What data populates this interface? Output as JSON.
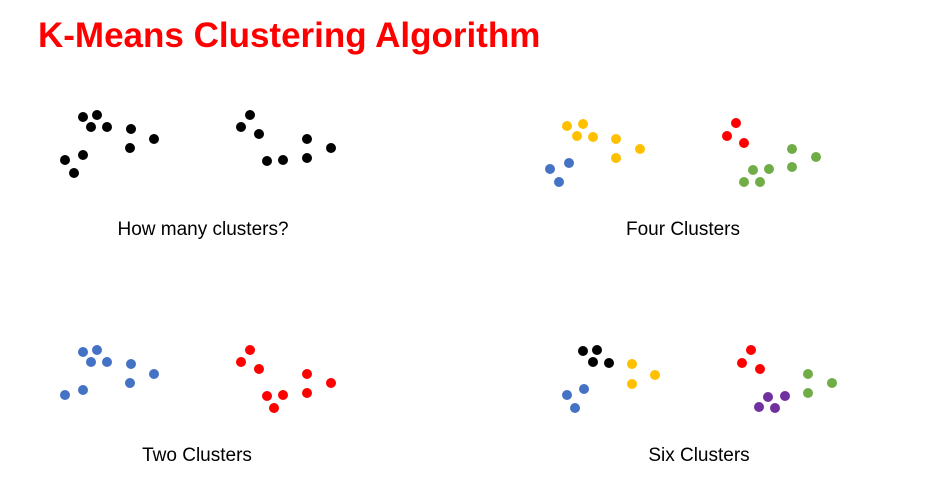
{
  "title": "K-Means Clustering Algorithm",
  "colors": {
    "title": "#ff0000",
    "black": "#000000",
    "blue": "#4472c4",
    "red": "#ff0000",
    "yellow": "#ffc000",
    "green": "#70ad47",
    "purple": "#7030a0"
  },
  "panels": [
    {
      "caption": "How many clusters?",
      "groups": [
        {
          "color": "black",
          "count": 18
        }
      ]
    },
    {
      "caption": "Four Clusters",
      "groups": [
        {
          "color": "blue",
          "count": 3
        },
        {
          "color": "yellow",
          "count": 7
        },
        {
          "color": "red",
          "count": 3
        },
        {
          "color": "green",
          "count": 7
        }
      ]
    },
    {
      "caption": "Two Clusters",
      "groups": [
        {
          "color": "blue",
          "count": 9
        },
        {
          "color": "red",
          "count": 9
        }
      ]
    },
    {
      "caption": "Six Clusters",
      "groups": [
        {
          "color": "blue",
          "count": 3
        },
        {
          "color": "black",
          "count": 4
        },
        {
          "color": "yellow",
          "count": 3
        },
        {
          "color": "red",
          "count": 3
        },
        {
          "color": "purple",
          "count": 4
        },
        {
          "color": "green",
          "count": 3
        }
      ]
    }
  ]
}
